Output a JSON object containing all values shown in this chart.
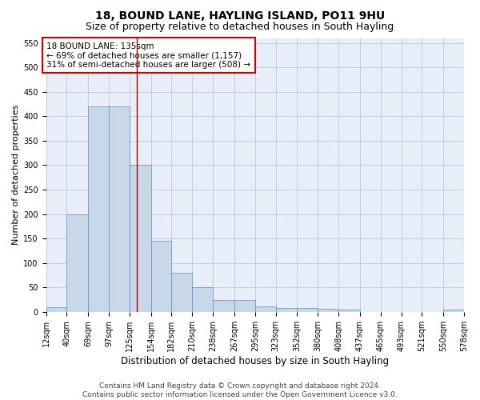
{
  "title1": "18, BOUND LANE, HAYLING ISLAND, PO11 9HU",
  "title2": "Size of property relative to detached houses in South Hayling",
  "xlabel": "Distribution of detached houses by size in South Hayling",
  "ylabel": "Number of detached properties",
  "footer1": "Contains HM Land Registry data © Crown copyright and database right 2024.",
  "footer2": "Contains public sector information licensed under the Open Government Licence v3.0.",
  "annotation_line1": "18 BOUND LANE: 135sqm",
  "annotation_line2": "← 69% of detached houses are smaller (1,157)",
  "annotation_line3": "31% of semi-detached houses are larger (508) →",
  "property_size": 135,
  "bin_edges": [
    12,
    40,
    69,
    97,
    125,
    154,
    182,
    210,
    238,
    267,
    295,
    323,
    352,
    380,
    408,
    437,
    465,
    493,
    521,
    550,
    578
  ],
  "bar_heights": [
    10,
    200,
    420,
    420,
    300,
    145,
    80,
    50,
    25,
    25,
    12,
    8,
    8,
    7,
    4,
    0,
    0,
    0,
    0,
    5
  ],
  "bar_color": "#c8d8e8",
  "bar_edge_color": "#5a8fc0",
  "vline_color": "#aa0000",
  "vline_x": 135,
  "annotation_box_color": "#cc0000",
  "ylim": [
    0,
    560
  ],
  "yticks": [
    0,
    50,
    100,
    150,
    200,
    250,
    300,
    350,
    400,
    450,
    500,
    550
  ],
  "grid_color": "#c0cce0",
  "background_color": "#e8eef8",
  "title1_fontsize": 10,
  "title2_fontsize": 9,
  "xlabel_fontsize": 8.5,
  "ylabel_fontsize": 8,
  "tick_fontsize": 7,
  "annotation_fontsize": 7.5,
  "footer_fontsize": 6.5
}
